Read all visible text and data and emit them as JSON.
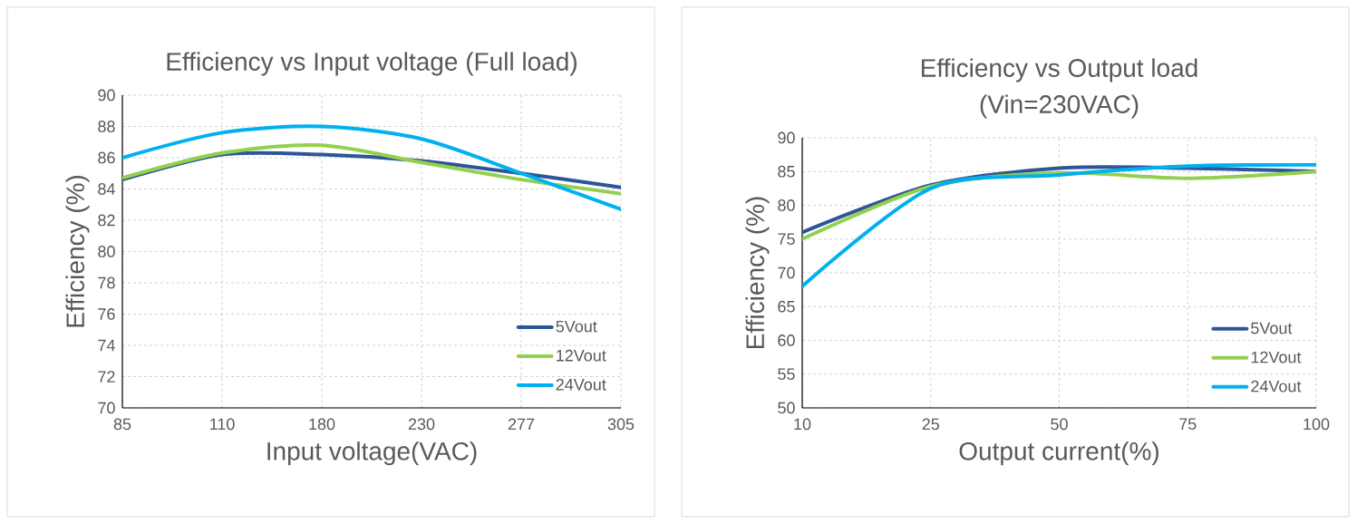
{
  "chart_data": [
    {
      "type": "line",
      "title": "Efficiency vs Input voltage (Full load)",
      "xlabel": "Input voltage(VAC)",
      "ylabel": "Efficiency (%)",
      "categories": [
        "85",
        "110",
        "180",
        "230",
        "277",
        "305"
      ],
      "ylim": [
        70,
        90
      ],
      "yticks": [
        70,
        72,
        74,
        76,
        78,
        80,
        82,
        84,
        86,
        88,
        90
      ],
      "grid": true,
      "legend": "bottom right",
      "series": [
        {
          "name": "5Vout",
          "color": "#2f5597",
          "values": [
            84.6,
            86.2,
            86.2,
            85.8,
            85.0,
            84.1
          ]
        },
        {
          "name": "12Vout",
          "color": "#92d050",
          "values": [
            84.7,
            86.3,
            86.8,
            85.7,
            84.6,
            83.7
          ]
        },
        {
          "name": "24Vout",
          "color": "#00b0f0",
          "values": [
            86.0,
            87.6,
            88.0,
            87.2,
            85.0,
            82.7
          ]
        }
      ]
    },
    {
      "type": "line",
      "title": "Efficiency vs Output load\n(Vin=230VAC)",
      "xlabel": "Output current(%)",
      "ylabel": "Efficiency (%)",
      "categories": [
        "10",
        "25",
        "50",
        "75",
        "100"
      ],
      "ylim": [
        50,
        90
      ],
      "yticks": [
        50,
        55,
        60,
        65,
        70,
        75,
        80,
        85,
        90
      ],
      "grid": true,
      "legend": "bottom right",
      "series": [
        {
          "name": "5Vout",
          "color": "#2f5597",
          "values": [
            76,
            83,
            85.5,
            85.5,
            85
          ]
        },
        {
          "name": "12Vout",
          "color": "#92d050",
          "values": [
            75,
            82.8,
            84.8,
            84,
            85
          ]
        },
        {
          "name": "24Vout",
          "color": "#00b0f0",
          "values": [
            68,
            82.5,
            84.5,
            85.8,
            86
          ]
        }
      ]
    }
  ]
}
